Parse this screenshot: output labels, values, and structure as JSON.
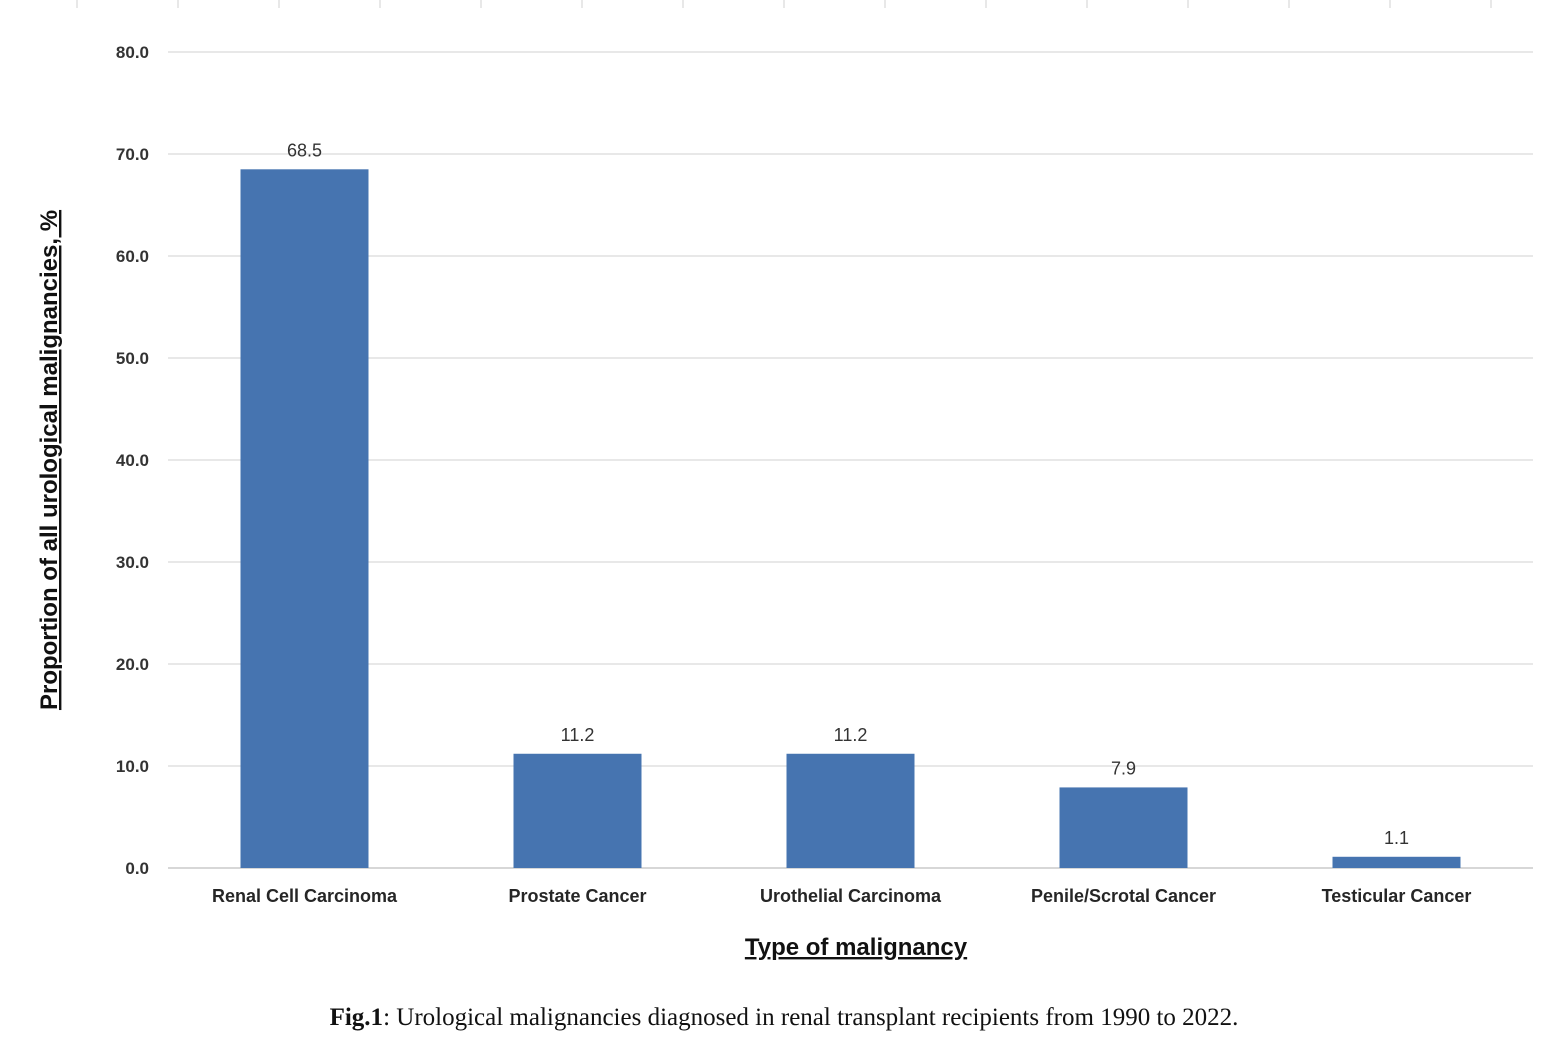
{
  "chart_data": {
    "type": "bar",
    "categories": [
      "Renal Cell Carcinoma",
      "Prostate Cancer",
      "Urothelial Carcinoma",
      "Penile/Scrotal Cancer",
      "Testicular Cancer"
    ],
    "values": [
      68.5,
      11.2,
      11.2,
      7.9,
      1.1
    ],
    "data_labels": [
      "68.5",
      "11.2",
      "11.2",
      "7.9",
      "1.1"
    ],
    "title": "",
    "xlabel": "Type of malignancy",
    "ylabel": "Proportion of all urological malignancies, %",
    "ylim": [
      0,
      80
    ],
    "yticks": [
      "0.0",
      "10.0",
      "20.0",
      "30.0",
      "40.0",
      "50.0",
      "60.0",
      "70.0",
      "80.0"
    ],
    "grid": true,
    "bar_color": "#4674B0",
    "gridline_color": "#D9D9D9"
  },
  "caption": {
    "label": "Fig.1",
    "text": ": Urological malignancies diagnosed in renal transplant recipients from 1990 to 2022."
  }
}
